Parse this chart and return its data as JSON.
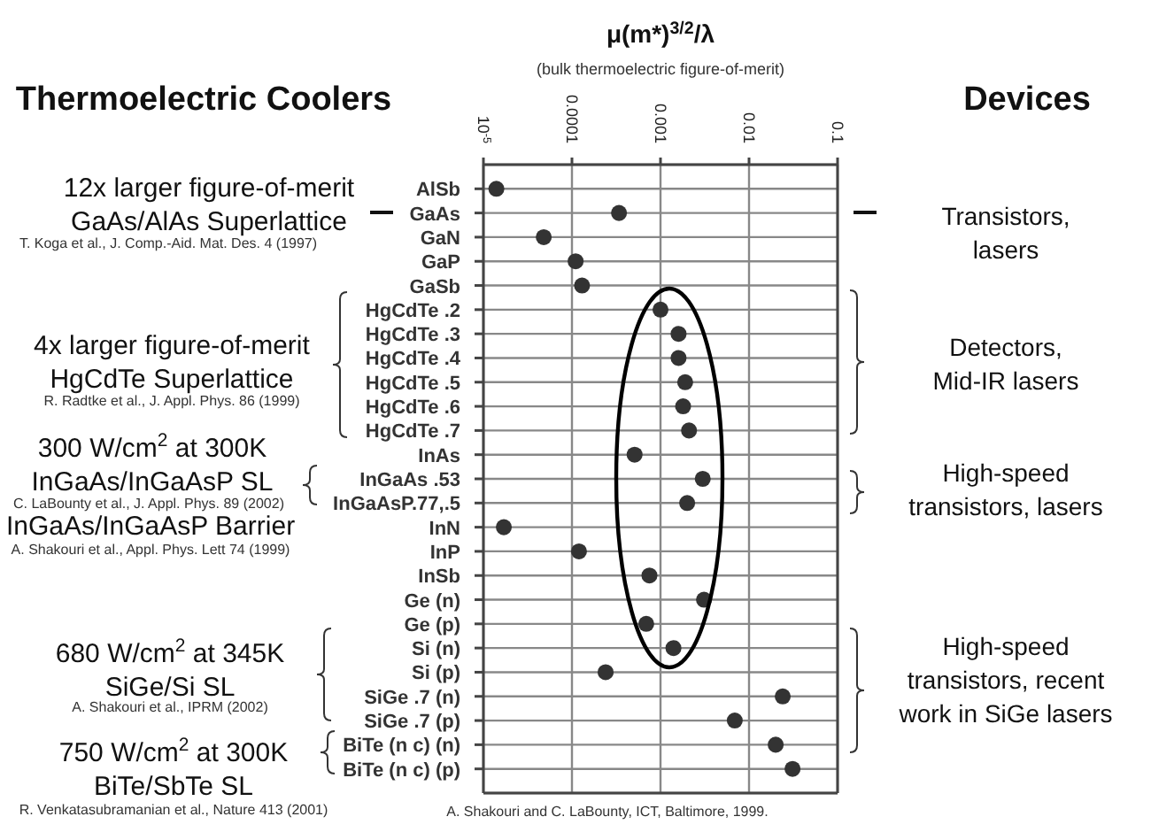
{
  "chart_data": {
    "type": "scatter",
    "title": "μ(m*)$^{3/2}$/λ",
    "subtitle": "(bulk thermoelectric figure-of-merit)",
    "categories": [
      "AlSb",
      "GaAs",
      "GaN",
      "GaP",
      "GaSb",
      "HgCdTe .2",
      "HgCdTe .3",
      "HgCdTe .4",
      "HgCdTe .5",
      "HgCdTe .6",
      "HgCdTe .7",
      "InAs",
      "InGaAs .53",
      "InGaAsP.77,.5",
      "InN",
      "InP",
      "InSb",
      "Ge (n)",
      "Ge (p)",
      "Si (n)",
      "Si (p)",
      "SiGe .7 (n)",
      "SiGe .7 (p)",
      "BiTe (n c) (n)",
      "BiTe (n c) (p)"
    ],
    "series": [
      {
        "color": "#333333",
        "values": [
          1.4e-05,
          0.00034,
          4.8e-05,
          0.00011,
          0.00013,
          0.001,
          0.0016,
          0.0016,
          0.0019,
          0.0018,
          0.0021,
          0.00051,
          0.003,
          0.002,
          1.7e-05,
          0.00012,
          0.00075,
          0.0031,
          0.00069,
          0.0014,
          0.00024,
          0.024,
          0.0069,
          0.02,
          0.031
        ]
      }
    ],
    "orientation": "horizontal",
    "log": "x",
    "xlim": [
      1e-05,
      0.1
    ],
    "xticks": [
      {
        "value": 1e-05,
        "label": "10$^{-5}$"
      },
      0.0001,
      0.001,
      0.01,
      0.1
    ],
    "grid": true,
    "marker": "circle",
    "legend": false,
    "annotations": [
      "Thermoelectric Coolers",
      "Devices",
      "12x larger figure-of-merit",
      "GaAs/AlAs Superlattice",
      "T. Koga et al., J. Comp.-Aid. Mat. Des. 4 (1997)",
      "4x larger figure-of-merit",
      "HgCdTe Superlattice",
      "R. Radtke et al., J. Appl. Phys. 86 (1999)",
      "300 W/cm$^{2}$ at 300K",
      "InGaAs/InGaAsP SL",
      "C. LaBounty et al., J. Appl. Phys. 89 (2002)",
      "InGaAs/InGaAsP Barrier",
      "A. Shakouri et al., Appl. Phys. Lett 74 (1999)",
      "680 W/cm$^{2}$ at 345K",
      "SiGe/Si SL",
      "A. Shakouri et al., IPRM (2002)",
      "750 W/cm$^{2}$ at 300K",
      "BiTe/SbTe SL",
      "R. Venkatasubramanian et al., Nature 413 (2001)",
      "Transistors,",
      "lasers",
      "Detectors,",
      "Mid-IR lasers",
      "High-speed",
      "transistors, lasers",
      "High-speed",
      "transistors, recent",
      "work in SiGe lasers",
      "A. Shakouri and C. LaBounty, ICT, Baltimore, 1999."
    ]
  }
}
